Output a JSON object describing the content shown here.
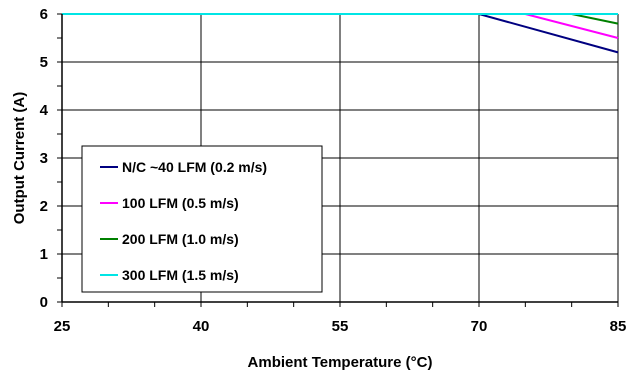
{
  "chart_data": {
    "type": "line",
    "title": "",
    "xlabel": "Ambient Temperature (°C)",
    "ylabel": "Output Current (A)",
    "xlim": [
      25,
      85
    ],
    "ylim": [
      0,
      6
    ],
    "x_ticks": [
      25,
      40,
      55,
      70,
      85
    ],
    "y_ticks": [
      0,
      1,
      2,
      3,
      4,
      5,
      6
    ],
    "grid": true,
    "legend_position": "bottom-left",
    "series": [
      {
        "name": "N/C ~40 LFM (0.2 m/s)",
        "color": "#000080",
        "x": [
          25,
          70,
          85
        ],
        "y": [
          6,
          6,
          5.2
        ]
      },
      {
        "name": "100 LFM (0.5 m/s)",
        "color": "#ff00ff",
        "x": [
          25,
          75,
          85
        ],
        "y": [
          6,
          6,
          5.5
        ]
      },
      {
        "name": "200 LFM (1.0 m/s)",
        "color": "#008000",
        "x": [
          25,
          80,
          85
        ],
        "y": [
          6,
          6,
          5.8
        ]
      },
      {
        "name": "300 LFM (1.5 m/s)",
        "color": "#00e5e5",
        "x": [
          25,
          85
        ],
        "y": [
          6,
          6
        ]
      }
    ]
  }
}
